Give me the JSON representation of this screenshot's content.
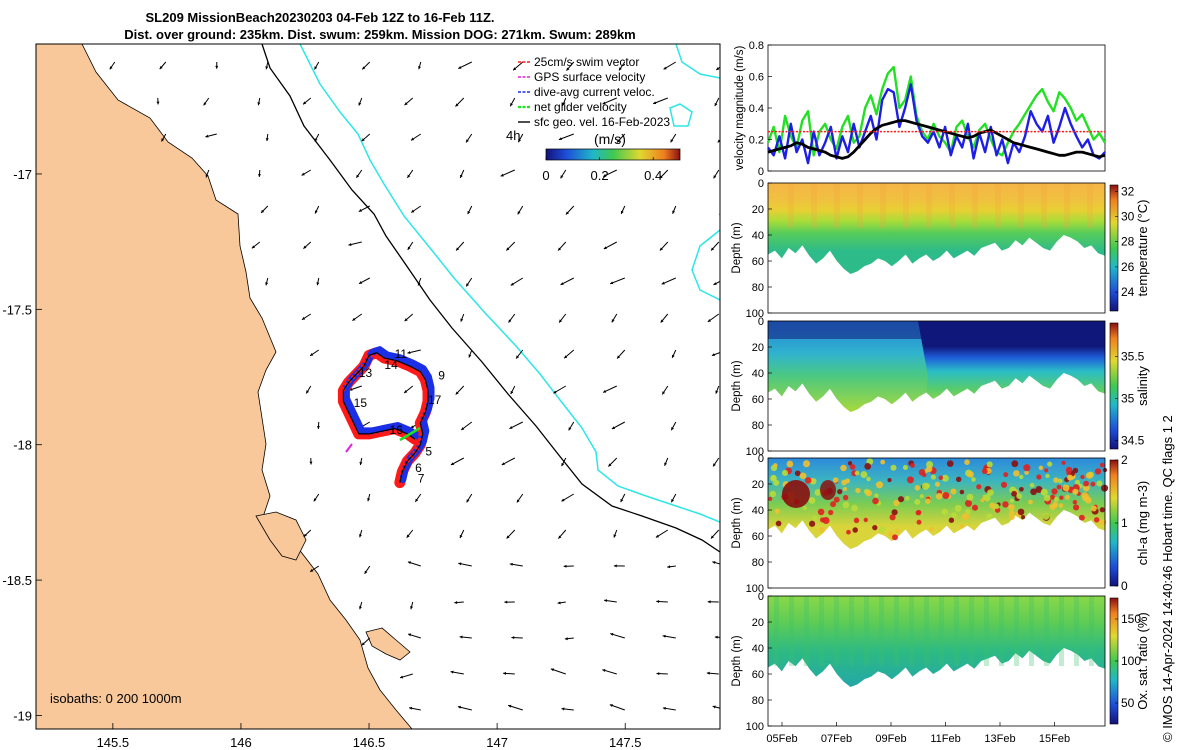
{
  "title": {
    "line1": "SL209 MissionBeach20230203 04-Feb 12Z to 16-Feb 11Z.",
    "line2": "Dist. over ground: 235km. Dist. swum: 259km. Mission DOG: 271km. Swum: 289km"
  },
  "side_note": "© IMOS 14-Apr-2024 14:40:46 Hobart time. QC flags 1  2",
  "colors": {
    "land": "#F8C89A",
    "isobath_200": "#000000",
    "isobath_1000": "#2EE6E6",
    "track_red": "#FF1A1A",
    "track_blue": "#1A2FE6",
    "speed_green": "#22E022",
    "speed_blue": "#1E1EE6"
  },
  "chart_data": [
    {
      "id": "map",
      "type": "map",
      "xlim": [
        145.2,
        147.87
      ],
      "ylim": [
        -19.05,
        -16.52
      ],
      "xticks": [
        145.5,
        146,
        146.5,
        147,
        147.5
      ],
      "xtick_labels": [
        "145.5",
        "146",
        "146.5",
        "147",
        "147.5"
      ],
      "yticks": [
        -17,
        -17.5,
        -18,
        -18.5,
        -19
      ],
      "ytick_labels": [
        "-17",
        "-17.5",
        "-18",
        "-18.5",
        "-19"
      ],
      "isobath_label": "isobaths: 0   200  1000m",
      "legend": [
        {
          "label": "25cm/s swim vector",
          "color": "#FF1A1A"
        },
        {
          "label": "GPS surface velocity",
          "color": "#E020E0"
        },
        {
          "label": "dive-avg current veloc.",
          "color": "#1A2FE6"
        },
        {
          "label": "net glider velocity",
          "color": "#22E022"
        },
        {
          "label": "sfc geo. vel. 16-Feb-2023",
          "color": "#000000"
        }
      ],
      "time_step_label": "4h",
      "colorbar": {
        "label": "(m/s)",
        "range": [
          0,
          0.5
        ],
        "ticks": [
          0,
          0.2,
          0.4
        ],
        "tick_labels": [
          "0",
          "0.2",
          "0.4"
        ]
      },
      "day_labels": [
        {
          "text": "5",
          "lon": 146.72,
          "lat": -18.04
        },
        {
          "text": "6",
          "lon": 146.68,
          "lat": -18.1
        },
        {
          "text": "7",
          "lon": 146.69,
          "lat": -18.14
        },
        {
          "text": "9",
          "lon": 146.77,
          "lat": -17.76
        },
        {
          "text": "11",
          "lon": 146.6,
          "lat": -17.68
        },
        {
          "text": "13",
          "lon": 146.46,
          "lat": -17.75
        },
        {
          "text": "14",
          "lon": 146.56,
          "lat": -17.72
        },
        {
          "text": "15",
          "lon": 146.44,
          "lat": -17.86
        },
        {
          "text": "16",
          "lon": 146.58,
          "lat": -17.96
        },
        {
          "text": "17",
          "lon": 146.73,
          "lat": -17.85
        }
      ],
      "glider_track": [
        [
          146.62,
          -18.14
        ],
        [
          146.63,
          -18.1
        ],
        [
          146.65,
          -18.06
        ],
        [
          146.68,
          -18.03
        ],
        [
          146.7,
          -18.0
        ],
        [
          146.71,
          -17.96
        ],
        [
          146.7,
          -17.92
        ],
        [
          146.72,
          -17.88
        ],
        [
          146.73,
          -17.84
        ],
        [
          146.73,
          -17.8
        ],
        [
          146.72,
          -17.76
        ],
        [
          146.7,
          -17.73
        ],
        [
          146.66,
          -17.71
        ],
        [
          146.61,
          -17.69
        ],
        [
          146.56,
          -17.68
        ],
        [
          146.53,
          -17.66
        ],
        [
          146.5,
          -17.67
        ],
        [
          146.48,
          -17.71
        ],
        [
          146.45,
          -17.74
        ],
        [
          146.42,
          -17.77
        ],
        [
          146.4,
          -17.8
        ],
        [
          146.4,
          -17.84
        ],
        [
          146.42,
          -17.88
        ],
        [
          146.44,
          -17.92
        ],
        [
          146.46,
          -17.96
        ],
        [
          146.5,
          -17.96
        ],
        [
          146.55,
          -17.95
        ],
        [
          146.6,
          -17.94
        ],
        [
          146.65,
          -17.96
        ],
        [
          146.68,
          -17.98
        ]
      ]
    },
    {
      "id": "velocity",
      "type": "line",
      "ylabel": "velocity magnitude (m/s)",
      "ylim": [
        0,
        0.8
      ],
      "yticks": [
        0,
        0.2,
        0.4,
        0.6,
        0.8
      ],
      "ytick_labels": [
        "0",
        "0.2",
        "0.4",
        "0.6",
        "0.8"
      ],
      "xlim": [
        0,
        12
      ],
      "series": [
        {
          "name": "net glider velocity",
          "color": "#22E022",
          "values": [
            0.18,
            0.28,
            0.12,
            0.35,
            0.22,
            0.15,
            0.32,
            0.38,
            0.1,
            0.25,
            0.3,
            0.2,
            0.14,
            0.28,
            0.35,
            0.18,
            0.22,
            0.4,
            0.48,
            0.36,
            0.52,
            0.62,
            0.66,
            0.4,
            0.45,
            0.6,
            0.35,
            0.25,
            0.2,
            0.3,
            0.22,
            0.18,
            0.12,
            0.28,
            0.32,
            0.22,
            0.15,
            0.26,
            0.3,
            0.2,
            0.12,
            0.1,
            0.18,
            0.25,
            0.3,
            0.36,
            0.42,
            0.48,
            0.52,
            0.44,
            0.38,
            0.5,
            0.46,
            0.4,
            0.32,
            0.36,
            0.28,
            0.2,
            0.24,
            0.18
          ]
        },
        {
          "name": "dive-avg current veloc.",
          "color": "#1E1EE6",
          "values": [
            0.15,
            0.1,
            0.22,
            0.08,
            0.3,
            0.12,
            0.2,
            0.05,
            0.25,
            0.1,
            0.18,
            0.28,
            0.08,
            0.22,
            0.12,
            0.3,
            0.15,
            0.25,
            0.35,
            0.2,
            0.45,
            0.52,
            0.5,
            0.28,
            0.4,
            0.55,
            0.32,
            0.22,
            0.18,
            0.25,
            0.15,
            0.28,
            0.1,
            0.22,
            0.15,
            0.3,
            0.08,
            0.24,
            0.12,
            0.28,
            0.1,
            0.2,
            0.05,
            0.18,
            0.12,
            0.22,
            0.38,
            0.3,
            0.25,
            0.35,
            0.18,
            0.28,
            0.4,
            0.3,
            0.22,
            0.15,
            0.2,
            0.1,
            0.08,
            0.12
          ]
        },
        {
          "name": "sfc geo. vel.",
          "color": "#000000",
          "values": [
            0.12,
            0.13,
            0.14,
            0.15,
            0.16,
            0.18,
            0.17,
            0.15,
            0.14,
            0.13,
            0.12,
            0.1,
            0.09,
            0.08,
            0.09,
            0.12,
            0.16,
            0.2,
            0.24,
            0.27,
            0.29,
            0.3,
            0.31,
            0.32,
            0.32,
            0.31,
            0.3,
            0.29,
            0.28,
            0.27,
            0.26,
            0.25,
            0.24,
            0.23,
            0.22,
            0.21,
            0.22,
            0.24,
            0.25,
            0.26,
            0.24,
            0.22,
            0.2,
            0.18,
            0.17,
            0.16,
            0.15,
            0.14,
            0.13,
            0.12,
            0.11,
            0.1,
            0.1,
            0.11,
            0.12,
            0.12,
            0.11,
            0.1,
            0.09,
            0.1
          ]
        },
        {
          "name": "25cm/s swim vector",
          "color": "#FF1A1A",
          "values": [
            0.25,
            0.25,
            0.25,
            0.25,
            0.25,
            0.25,
            0.25,
            0.25,
            0.25,
            0.25,
            0.25,
            0.25,
            0.25,
            0.25,
            0.25,
            0.25,
            0.25,
            0.25,
            0.25,
            0.25,
            0.25,
            0.25,
            0.25,
            0.25,
            0.25,
            0.25,
            0.25,
            0.25,
            0.25,
            0.25,
            0.25,
            0.25,
            0.25,
            0.25,
            0.25,
            0.25,
            0.25,
            0.25,
            0.25,
            0.25,
            0.25,
            0.25,
            0.25,
            0.25,
            0.25,
            0.25,
            0.25,
            0.25,
            0.25,
            0.25,
            0.25,
            0.25,
            0.25,
            0.25,
            0.25,
            0.25,
            0.25,
            0.25,
            0.25,
            0.25
          ]
        }
      ]
    },
    {
      "id": "temperature",
      "type": "heatmap",
      "ylabel": "Depth (m)",
      "ylim": [
        0,
        100
      ],
      "yticks": [
        0,
        20,
        40,
        60,
        80,
        100
      ],
      "ytick_labels": [
        "0",
        "20",
        "40",
        "60",
        "80",
        "100"
      ],
      "colorbar": {
        "label": "temperature (°C)",
        "range": [
          22.5,
          32.5
        ],
        "ticks": [
          24,
          26,
          28,
          30,
          32
        ],
        "tick_labels": [
          "24",
          "26",
          "28",
          "30",
          "32"
        ]
      },
      "bottom_depth": [
        55,
        52,
        58,
        50,
        54,
        48,
        56,
        62,
        58,
        52,
        60,
        66,
        70,
        68,
        64,
        62,
        58,
        60,
        64,
        60,
        55,
        62,
        58,
        55,
        60,
        57,
        52,
        58,
        55,
        52,
        56,
        50,
        48,
        46,
        52,
        50,
        44,
        48,
        42,
        46,
        50,
        52,
        45,
        40,
        42,
        45,
        50,
        48,
        54,
        56
      ]
    },
    {
      "id": "salinity",
      "type": "heatmap",
      "ylabel": "Depth (m)",
      "ylim": [
        0,
        100
      ],
      "yticks": [
        0,
        20,
        40,
        60,
        80,
        100
      ],
      "ytick_labels": [
        "0",
        "20",
        "40",
        "60",
        "80",
        "100"
      ],
      "colorbar": {
        "label": "salinity",
        "range": [
          34.4,
          35.9
        ],
        "ticks": [
          34.5,
          35,
          35.5
        ],
        "tick_labels": [
          "34.5",
          "35",
          "35.5"
        ]
      },
      "bottom_depth": [
        55,
        52,
        58,
        50,
        54,
        48,
        56,
        62,
        58,
        52,
        60,
        66,
        70,
        68,
        64,
        62,
        58,
        60,
        64,
        60,
        55,
        62,
        58,
        55,
        60,
        57,
        52,
        58,
        55,
        52,
        56,
        50,
        48,
        46,
        52,
        50,
        44,
        48,
        42,
        46,
        50,
        52,
        45,
        40,
        42,
        45,
        50,
        48,
        54,
        56
      ]
    },
    {
      "id": "chla",
      "type": "heatmap",
      "ylabel": "Depth (m)",
      "ylim": [
        0,
        100
      ],
      "yticks": [
        0,
        20,
        40,
        60,
        80,
        100
      ],
      "ytick_labels": [
        "0",
        "20",
        "40",
        "60",
        "80",
        "100"
      ],
      "colorbar": {
        "label": "chl-a (mg m-3)",
        "range": [
          0,
          2
        ],
        "ticks": [
          0,
          1,
          2
        ],
        "tick_labels": [
          "0",
          "1",
          "2"
        ]
      },
      "bottom_depth": [
        55,
        52,
        58,
        50,
        54,
        48,
        56,
        62,
        58,
        52,
        60,
        66,
        70,
        68,
        64,
        62,
        58,
        60,
        64,
        60,
        55,
        62,
        58,
        55,
        60,
        57,
        52,
        58,
        55,
        52,
        56,
        50,
        48,
        46,
        52,
        50,
        44,
        48,
        42,
        46,
        50,
        52,
        45,
        40,
        42,
        45,
        50,
        48,
        54,
        56
      ]
    },
    {
      "id": "oxygen",
      "type": "heatmap",
      "ylabel": "Depth (m)",
      "ylim": [
        0,
        100
      ],
      "yticks": [
        0,
        20,
        40,
        60,
        80,
        100
      ],
      "ytick_labels": [
        "0",
        "20",
        "40",
        "60",
        "80",
        "100"
      ],
      "xtick_labels": [
        "05Feb",
        "07Feb",
        "09Feb",
        "11Feb",
        "13Feb",
        "15Feb"
      ],
      "colorbar": {
        "label": "Ox. sat. ratio (%)",
        "range": [
          25,
          175
        ],
        "ticks": [
          50,
          100,
          150
        ],
        "tick_labels": [
          "50",
          "100",
          "150"
        ]
      },
      "bottom_depth": [
        55,
        52,
        58,
        50,
        54,
        48,
        56,
        62,
        58,
        52,
        60,
        66,
        70,
        68,
        64,
        62,
        58,
        60,
        64,
        60,
        55,
        62,
        58,
        55,
        60,
        57,
        52,
        58,
        55,
        52,
        56,
        50,
        48,
        46,
        52,
        50,
        44,
        48,
        42,
        46,
        50,
        52,
        45,
        40,
        42,
        45,
        50,
        48,
        54,
        56
      ]
    }
  ]
}
